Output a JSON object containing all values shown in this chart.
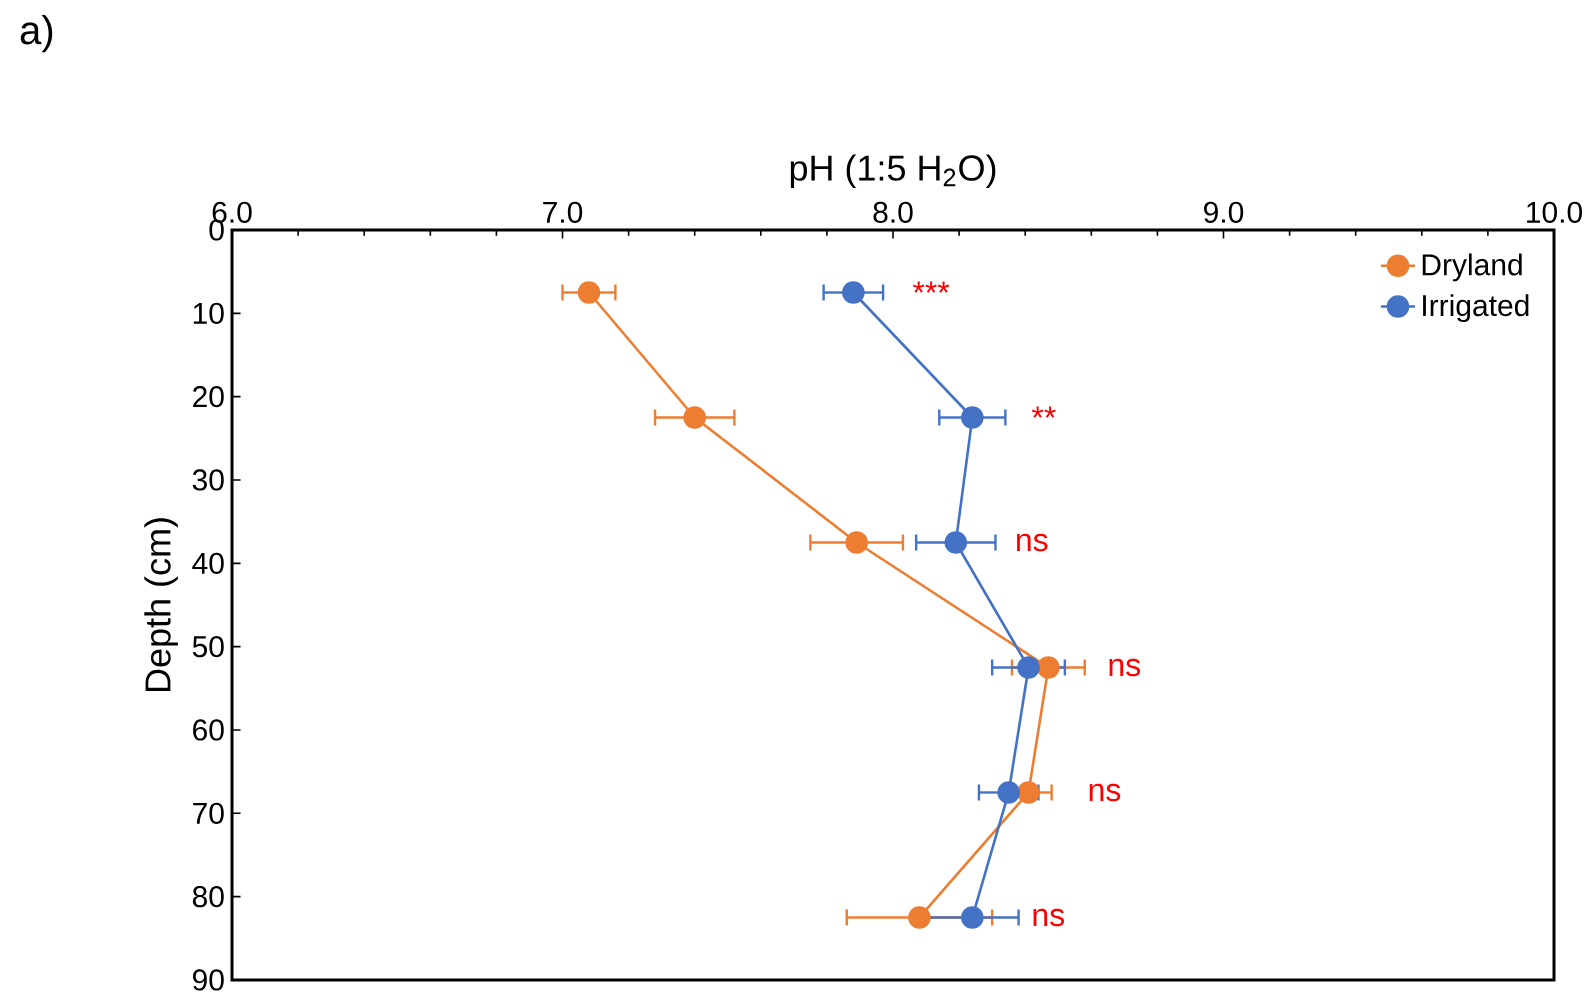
{
  "chart_data": {
    "type": "line",
    "xlabel": "pH (1:5 H$_{2}$O)",
    "ylabel": "Depth (cm)",
    "xlim": [
      6,
      10
    ],
    "xticks": [
      {
        "value": 6,
        "label": "6.0"
      },
      {
        "value": 7,
        "label": "7.0"
      },
      {
        "value": 8,
        "label": "8.0"
      },
      {
        "value": 9,
        "label": "9.0"
      },
      {
        "value": 10,
        "label": "10.0"
      }
    ],
    "ylim": [
      90,
      0
    ],
    "yticks": [
      0,
      10,
      20,
      30,
      40,
      50,
      60,
      70,
      80,
      90
    ],
    "marker": "circle",
    "line_style": "solid",
    "grid": false,
    "legend": "top right",
    "series": [
      {
        "name": "Dryland",
        "color": "#ed7d31",
        "x": [
          7.08,
          7.4,
          7.89,
          8.47,
          8.41,
          8.08
        ],
        "values": [
          7.5,
          22.5,
          37.5,
          52.5,
          67.5,
          82.5
        ],
        "xerrors": [
          0.08,
          0.12,
          0.14,
          0.11,
          0.07,
          0.22
        ]
      },
      {
        "name": "Irrigated",
        "color": "#4472c4",
        "x": [
          7.88,
          8.24,
          8.19,
          8.41,
          8.35,
          8.24
        ],
        "values": [
          7.5,
          22.5,
          37.5,
          52.5,
          67.5,
          82.5
        ],
        "xerrors": [
          0.09,
          0.1,
          0.12,
          0.11,
          0.09,
          0.14
        ]
      }
    ],
    "annotations": [
      "a)",
      {
        "text": "***",
        "x": 7.88,
        "y": 7.5
      },
      {
        "text": "**",
        "x": 8.24,
        "y": 22.5
      },
      {
        "text": "ns",
        "x": 8.19,
        "y": 37.5
      },
      {
        "text": "ns",
        "x": 8.47,
        "y": 52.5
      },
      {
        "text": "ns",
        "x": 8.41,
        "y": 67.5
      },
      {
        "text": "ns",
        "x": 8.24,
        "y": 82.5
      }
    ]
  }
}
